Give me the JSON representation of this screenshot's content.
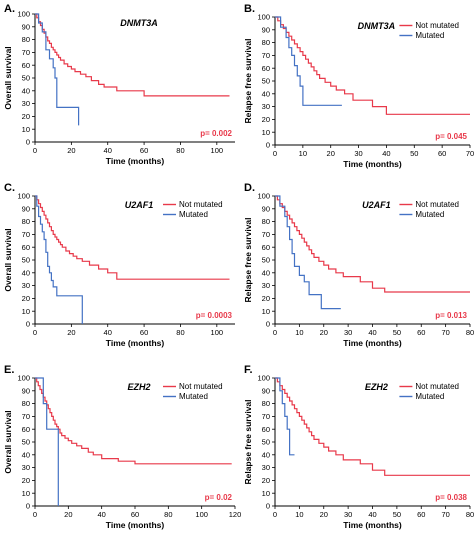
{
  "colors": {
    "not_mutated": "#e8394a",
    "mutated": "#4472c4",
    "pvalue": "#e8394a",
    "axis": "#000000"
  },
  "chart_data": [
    {
      "panel": "A.",
      "type": "line",
      "title": "DNMT3A",
      "xlabel": "Time (months)",
      "ylabel": "Overall survival",
      "xlim": [
        0,
        110
      ],
      "xticks": [
        0,
        20,
        40,
        60,
        80,
        100
      ],
      "ylim": [
        0,
        100
      ],
      "yticks": [
        0,
        10,
        20,
        30,
        40,
        50,
        60,
        70,
        80,
        90,
        100
      ],
      "legend": "none",
      "grid": false,
      "annotation": "p= 0.002",
      "series": [
        {
          "key": "not_mutated",
          "x": [
            0,
            1,
            2,
            3,
            4,
            5,
            6,
            7,
            8,
            9,
            10,
            11,
            12,
            13,
            14,
            16,
            18,
            20,
            22,
            25,
            28,
            31,
            35,
            38,
            45,
            60,
            107
          ],
          "y": [
            100,
            97,
            94,
            91,
            88,
            85,
            82,
            79,
            77,
            74,
            72,
            70,
            68,
            66,
            64,
            61,
            59,
            57,
            55,
            53,
            51,
            48,
            45,
            43,
            40,
            36,
            36
          ]
        },
        {
          "key": "mutated",
          "x": [
            0,
            2,
            4,
            6,
            8,
            10,
            11,
            12,
            18,
            24
          ],
          "y": [
            100,
            93,
            86,
            72,
            65,
            58,
            50,
            27,
            27,
            13
          ]
        }
      ]
    },
    {
      "panel": "B.",
      "type": "line",
      "title": "DNMT3A",
      "xlabel": "Time (months)",
      "ylabel": "Relapse free survival",
      "xlim": [
        0,
        70
      ],
      "xticks": [
        0,
        10,
        20,
        30,
        40,
        50,
        60,
        70
      ],
      "ylim": [
        0,
        100
      ],
      "yticks": [
        0,
        10,
        20,
        30,
        40,
        50,
        60,
        70,
        80,
        90,
        100
      ],
      "legend": "top-right",
      "grid": false,
      "legend_labels": [
        "Not mutated",
        "Mutated"
      ],
      "annotation": "p= 0.045",
      "series": [
        {
          "key": "not_mutated",
          "x": [
            0,
            1,
            2,
            3,
            4,
            5,
            6,
            7,
            8,
            9,
            10,
            11,
            12,
            13,
            14,
            15,
            16,
            18,
            20,
            22,
            25,
            28,
            35,
            40,
            55,
            70
          ],
          "y": [
            100,
            97,
            94,
            91,
            88,
            85,
            82,
            79,
            76,
            73,
            70,
            67,
            64,
            61,
            58,
            55,
            52,
            49,
            46,
            43,
            40,
            35,
            30,
            24,
            24,
            24
          ]
        },
        {
          "key": "mutated",
          "x": [
            0,
            2,
            4,
            5,
            6,
            7,
            8,
            9,
            10,
            24
          ],
          "y": [
            100,
            92,
            84,
            76,
            70,
            62,
            54,
            46,
            31,
            31
          ]
        }
      ]
    },
    {
      "panel": "C.",
      "type": "line",
      "title": "U2AF1",
      "xlabel": "Time (months)",
      "ylabel": "Overall survival",
      "xlim": [
        0,
        110
      ],
      "xticks": [
        0,
        20,
        40,
        60,
        80,
        100
      ],
      "ylim": [
        0,
        100
      ],
      "yticks": [
        0,
        10,
        20,
        30,
        40,
        50,
        60,
        70,
        80,
        90,
        100
      ],
      "legend": "top-right",
      "grid": false,
      "legend_labels": [
        "Not mutated",
        "Mutated"
      ],
      "annotation": "p= 0.0003",
      "series": [
        {
          "key": "not_mutated",
          "x": [
            0,
            1,
            2,
            3,
            4,
            5,
            6,
            7,
            8,
            9,
            10,
            11,
            12,
            13,
            14,
            15,
            17,
            19,
            21,
            23,
            26,
            30,
            35,
            40,
            45,
            107
          ],
          "y": [
            100,
            97,
            94,
            91,
            88,
            85,
            82,
            79,
            76,
            73,
            70,
            68,
            66,
            64,
            62,
            60,
            57,
            55,
            53,
            51,
            49,
            46,
            43,
            40,
            35,
            35
          ]
        },
        {
          "key": "mutated",
          "x": [
            0,
            1,
            2,
            3,
            4,
            5,
            6,
            7,
            8,
            9,
            10,
            12,
            26
          ],
          "y": [
            100,
            92,
            84,
            78,
            72,
            66,
            56,
            45,
            40,
            34,
            29,
            22,
            0
          ]
        }
      ]
    },
    {
      "panel": "D.",
      "type": "line",
      "title": "U2AF1",
      "xlabel": "Time (months)",
      "ylabel": "Relapse free survival",
      "xlim": [
        0,
        80
      ],
      "xticks": [
        0,
        10,
        20,
        30,
        40,
        50,
        60,
        70,
        80
      ],
      "ylim": [
        0,
        100
      ],
      "yticks": [
        0,
        10,
        20,
        30,
        40,
        50,
        60,
        70,
        80,
        90,
        100
      ],
      "legend": "top-right",
      "grid": false,
      "legend_labels": [
        "Not mutated",
        "Mutated"
      ],
      "annotation": "p= 0.013",
      "series": [
        {
          "key": "not_mutated",
          "x": [
            0,
            1,
            2,
            3,
            4,
            5,
            6,
            7,
            8,
            9,
            10,
            11,
            12,
            13,
            14,
            15,
            16,
            18,
            20,
            22,
            25,
            28,
            35,
            40,
            45,
            80
          ],
          "y": [
            100,
            97,
            94,
            91,
            88,
            85,
            82,
            79,
            76,
            73,
            70,
            67,
            64,
            61,
            58,
            55,
            52,
            49,
            46,
            43,
            40,
            37,
            33,
            28,
            25,
            25
          ]
        },
        {
          "key": "mutated",
          "x": [
            0,
            2,
            4,
            5,
            6,
            7,
            8,
            10,
            12,
            14,
            19,
            27
          ],
          "y": [
            100,
            92,
            84,
            76,
            66,
            55,
            45,
            38,
            33,
            23,
            12,
            12
          ]
        }
      ]
    },
    {
      "panel": "E.",
      "type": "line",
      "title": "EZH2",
      "xlabel": "Time (months)",
      "ylabel": "Overall survival",
      "xlim": [
        0,
        120
      ],
      "xticks": [
        0,
        20,
        40,
        60,
        80,
        100,
        120
      ],
      "ylim": [
        0,
        100
      ],
      "yticks": [
        0,
        10,
        20,
        30,
        40,
        50,
        60,
        70,
        80,
        90,
        100
      ],
      "legend": "top-right",
      "grid": false,
      "legend_labels": [
        "Not mutated",
        "Mutated"
      ],
      "annotation": "p= 0.02",
      "series": [
        {
          "key": "not_mutated",
          "x": [
            0,
            1,
            2,
            3,
            4,
            5,
            6,
            7,
            8,
            9,
            10,
            11,
            12,
            13,
            14,
            15,
            16,
            18,
            20,
            22,
            25,
            28,
            32,
            35,
            40,
            50,
            60,
            118
          ],
          "y": [
            100,
            97,
            94,
            91,
            88,
            85,
            82,
            79,
            76,
            73,
            70,
            67,
            64,
            62,
            60,
            57,
            55,
            53,
            51,
            49,
            47,
            45,
            42,
            40,
            37,
            35,
            33,
            33
          ]
        },
        {
          "key": "mutated",
          "x": [
            0,
            5,
            7,
            13,
            14
          ],
          "y": [
            100,
            80,
            60,
            60,
            0
          ]
        }
      ]
    },
    {
      "panel": "F.",
      "type": "line",
      "title": "EZH2",
      "xlabel": "Time (months)",
      "ylabel": "Relapse free survival",
      "xlim": [
        0,
        80
      ],
      "xticks": [
        0,
        10,
        20,
        30,
        40,
        50,
        60,
        70,
        80
      ],
      "ylim": [
        0,
        100
      ],
      "yticks": [
        0,
        10,
        20,
        30,
        40,
        50,
        60,
        70,
        80,
        90,
        100
      ],
      "legend": "top-right",
      "grid": false,
      "legend_labels": [
        "Not mutated",
        "Mutated"
      ],
      "annotation": "p= 0.038",
      "series": [
        {
          "key": "not_mutated",
          "x": [
            0,
            1,
            2,
            3,
            4,
            5,
            6,
            7,
            8,
            9,
            10,
            11,
            12,
            13,
            14,
            15,
            16,
            18,
            20,
            22,
            25,
            28,
            35,
            40,
            45,
            80
          ],
          "y": [
            100,
            97,
            94,
            91,
            88,
            85,
            82,
            79,
            76,
            73,
            70,
            67,
            64,
            61,
            58,
            55,
            52,
            49,
            46,
            43,
            40,
            36,
            33,
            28,
            24,
            24
          ]
        },
        {
          "key": "mutated",
          "x": [
            0,
            2,
            3,
            4,
            5,
            6,
            8
          ],
          "y": [
            100,
            90,
            80,
            70,
            60,
            40,
            40
          ]
        }
      ]
    }
  ]
}
